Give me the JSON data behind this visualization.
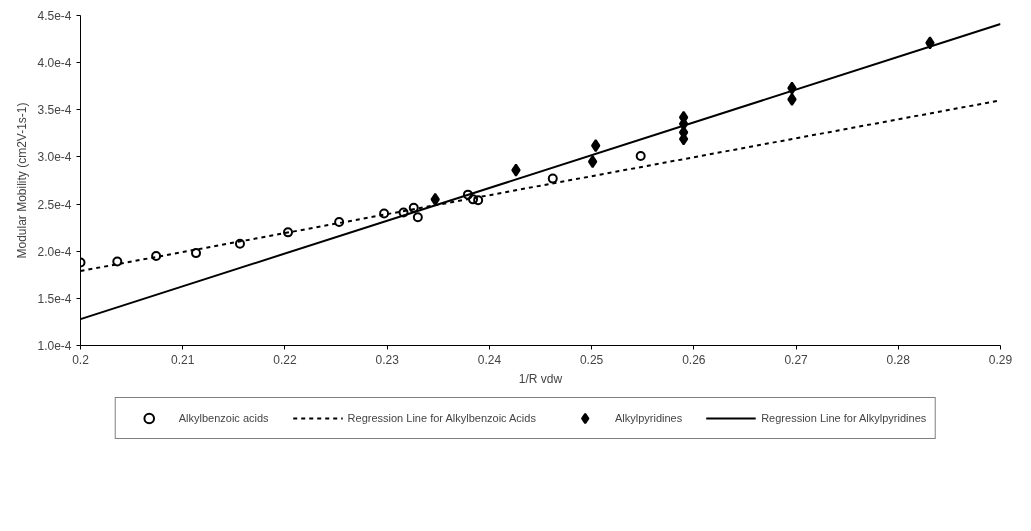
{
  "chart_data": {
    "type": "scatter",
    "xlabel": "1/R vdw",
    "ylabel": "Modular Mobility (cm2V-1s-1)",
    "xlim": [
      0.2,
      0.29
    ],
    "xticks": [
      0.2,
      0.21,
      0.22,
      0.23,
      0.24,
      0.25,
      0.26,
      0.27,
      0.28,
      0.29
    ],
    "ylim": [
      0.0001,
      0.00045
    ],
    "yticks": [
      {
        "value": 0.0001,
        "label": "1.0e-4"
      },
      {
        "value": 0.00015,
        "label": "1.5e-4"
      },
      {
        "value": 0.0002,
        "label": "2.0e-4"
      },
      {
        "value": 0.00025,
        "label": "2.5e-4"
      },
      {
        "value": 0.0003,
        "label": "3.0e-4"
      },
      {
        "value": 0.00035,
        "label": "3.5e-4"
      },
      {
        "value": 0.0004,
        "label": "4.0e-4"
      },
      {
        "value": 0.00045,
        "label": "4.5e-4"
      }
    ],
    "grid": false,
    "legend": "bottom",
    "series": [
      {
        "name": "Alkylbenzoic acids",
        "marker": "circle",
        "color": "#000000",
        "x": [
          0.2,
          0.2036,
          0.2074,
          0.2113,
          0.2156,
          0.2203,
          0.2253,
          0.2297,
          0.2316,
          0.2326,
          0.233,
          0.2379,
          0.2384,
          0.2389,
          0.2462,
          0.2548
        ],
        "values": [
          0.000188,
          0.000189,
          0.000195,
          0.000198,
          0.000208,
          0.00022,
          0.000231,
          0.00024,
          0.000241,
          0.000246,
          0.000236,
          0.00026,
          0.000255,
          0.000254,
          0.000277,
          0.000301
        ]
      },
      {
        "name": "Regression Line for Alkylbenzoic Acids",
        "type": "line",
        "line_style": "dashed",
        "color": "#000000",
        "x": [
          0.2,
          0.29
        ],
        "values": [
          0.000179,
          0.00036
        ]
      },
      {
        "name": "Alkylpyridines",
        "marker": "diamond",
        "color": "#000000",
        "x": [
          0.2347,
          0.2426,
          0.2501,
          0.2504,
          0.259,
          0.259,
          0.259,
          0.259,
          0.2696,
          0.2696,
          0.2831
        ],
        "values": [
          0.000255,
          0.000286,
          0.000295,
          0.000312,
          0.000342,
          0.000335,
          0.000326,
          0.000319,
          0.000373,
          0.000361,
          0.000421
        ]
      },
      {
        "name": "Regression Line for Alkylpyridines",
        "type": "line",
        "line_style": "solid",
        "color": "#000000",
        "x": [
          0.2,
          0.29
        ],
        "values": [
          0.000128,
          0.000441
        ]
      }
    ]
  }
}
